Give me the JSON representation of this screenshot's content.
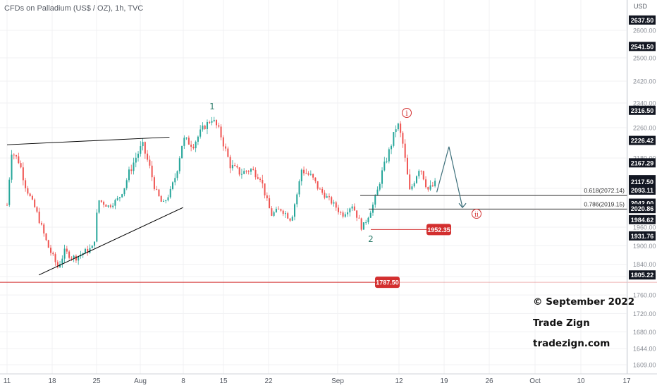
{
  "chart_title": "CFDs on Palladium (US$ / OZ), 1h, TVC",
  "currency_label": "USD",
  "watermark": {
    "copyright": "© September 2022",
    "brand": "Trade Zign",
    "site": "tradezign.com"
  },
  "colors": {
    "up_candle": "#26a69a",
    "down_candle": "#ef5350",
    "line_annotation": "#d32f2f",
    "trend_line": "#000000",
    "projection_line": "#3d6f7a",
    "wave_green": "#2e7d6b",
    "wave_red": "#d32f2f"
  },
  "chart_data": {
    "type": "candlestick",
    "title": "CFDs on Palladium (US$ / OZ), 1h, TVC",
    "ylabel": "USD",
    "ylim": [
      1595,
      2675
    ],
    "x_ticks": [
      "11",
      "18",
      "25",
      "Aug",
      "8",
      "15",
      "22",
      "Sep",
      "12",
      "19",
      "26",
      "Oct",
      "10",
      "17"
    ],
    "y_ticks": [
      1609.0,
      1644.0,
      1680.0,
      1720.0,
      1760.0,
      1800.0,
      1840.0,
      1900.0,
      1960.0,
      2020.0,
      2100.0,
      2180.0,
      2260.0,
      2340.0,
      2420.0,
      2500.0,
      2600.0
    ],
    "highlighted_prices": [
      {
        "label": "2637.50",
        "value": 2637.5
      },
      {
        "label": "2541.50",
        "value": 2541.5
      },
      {
        "label": "2316.50",
        "value": 2316.5
      },
      {
        "label": "2226.42",
        "value": 2226.42
      },
      {
        "label": "2167.29",
        "value": 2167.29
      },
      {
        "label": "2123.00",
        "value": 2123.0
      },
      {
        "label": "2117.50",
        "value": 2117.5
      },
      {
        "label": "2093.11",
        "value": 2093.11
      },
      {
        "label": "2042.00",
        "value": 2042.0
      },
      {
        "label": "2020.86",
        "value": 2020.86
      },
      {
        "label": "1984.62",
        "value": 1984.62
      },
      {
        "label": "1931.76",
        "value": 1931.76
      },
      {
        "label": "1805.22",
        "value": 1805.22
      }
    ],
    "price_markers": [
      {
        "label": "1952.35",
        "value": 1952.35
      },
      {
        "label": "1787.50",
        "value": 1787.5
      }
    ],
    "fib_levels": [
      {
        "label": "0.618(2072.14)",
        "value": 2072.14
      },
      {
        "label": "0.786(2019.15)",
        "value": 2019.15
      }
    ],
    "wave_labels": [
      "1",
      "2",
      "i",
      "ii"
    ],
    "price_path": [
      {
        "x": 0,
        "y": 2035
      },
      {
        "x": 0.6,
        "y": 2200
      },
      {
        "x": 1.8,
        "y": 2170
      },
      {
        "x": 3,
        "y": 2090
      },
      {
        "x": 4.5,
        "y": 2000
      },
      {
        "x": 6,
        "y": 1900
      },
      {
        "x": 7.5,
        "y": 1830
      },
      {
        "x": 8.5,
        "y": 1880
      },
      {
        "x": 10,
        "y": 1860
      },
      {
        "x": 11.5,
        "y": 1880
      },
      {
        "x": 12.8,
        "y": 1895
      },
      {
        "x": 13.5,
        "y": 2055
      },
      {
        "x": 15,
        "y": 2030
      },
      {
        "x": 16.5,
        "y": 2060
      },
      {
        "x": 18,
        "y": 2140
      },
      {
        "x": 19,
        "y": 2180
      },
      {
        "x": 20,
        "y": 2215
      },
      {
        "x": 21,
        "y": 2160
      },
      {
        "x": 22,
        "y": 2090
      },
      {
        "x": 23,
        "y": 2035
      },
      {
        "x": 24,
        "y": 2080
      },
      {
        "x": 25,
        "y": 2140
      },
      {
        "x": 26,
        "y": 2230
      },
      {
        "x": 27.5,
        "y": 2215
      },
      {
        "x": 29,
        "y": 2260
      },
      {
        "x": 30.3,
        "y": 2290
      },
      {
        "x": 31.5,
        "y": 2245
      },
      {
        "x": 33,
        "y": 2160
      },
      {
        "x": 34.5,
        "y": 2140
      },
      {
        "x": 36,
        "y": 2150
      },
      {
        "x": 37.5,
        "y": 2130
      },
      {
        "x": 39,
        "y": 2000
      },
      {
        "x": 40.5,
        "y": 2020
      },
      {
        "x": 42,
        "y": 1985
      },
      {
        "x": 43.5,
        "y": 2150
      },
      {
        "x": 45,
        "y": 2130
      },
      {
        "x": 46.5,
        "y": 2085
      },
      {
        "x": 48,
        "y": 2045
      },
      {
        "x": 49.5,
        "y": 2000
      },
      {
        "x": 51,
        "y": 2035
      },
      {
        "x": 52.5,
        "y": 1955
      },
      {
        "x": 54,
        "y": 2030
      },
      {
        "x": 55.2,
        "y": 2130
      },
      {
        "x": 56.5,
        "y": 2200
      },
      {
        "x": 57.7,
        "y": 2275
      },
      {
        "x": 58.5,
        "y": 2215
      },
      {
        "x": 59.5,
        "y": 2090
      },
      {
        "x": 61,
        "y": 2160
      },
      {
        "x": 62.2,
        "y": 2095
      },
      {
        "x": 63.5,
        "y": 2115
      }
    ],
    "x_units": "trading days from Jul 11 (chart start)",
    "x_range": [
      -0.5,
      90
    ],
    "projection": [
      {
        "x": 63.5,
        "y": 2085
      },
      {
        "x": 65.3,
        "y": 2210
      },
      {
        "x": 67.3,
        "y": 2025
      }
    ],
    "trend_lines": [
      {
        "from": {
          "x": 0,
          "y": 2215
        },
        "to": {
          "x": 24,
          "y": 2235
        }
      },
      {
        "from": {
          "x": 4.7,
          "y": 1805
        },
        "to": {
          "x": 26,
          "y": 2025
        }
      }
    ]
  }
}
